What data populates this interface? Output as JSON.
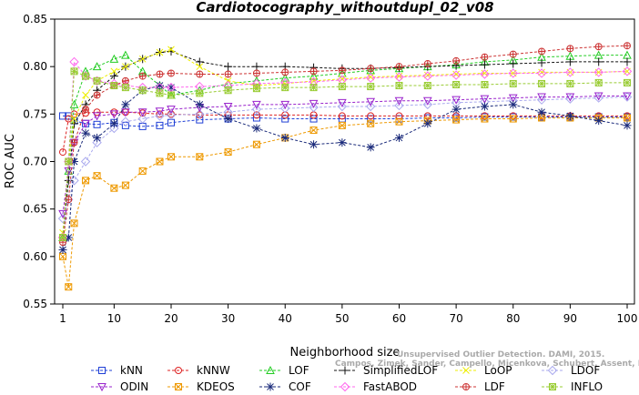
{
  "chart_data": {
    "type": "line",
    "title": "Cardiotocography_withoutdupl_02_v08",
    "xlabel": "Neighborhood size",
    "ylabel": "ROC AUC",
    "xlim": [
      1,
      100
    ],
    "ylim": [
      0.55,
      0.85
    ],
    "x_ticks": [
      1,
      10,
      20,
      30,
      40,
      50,
      60,
      70,
      80,
      90,
      100
    ],
    "y_ticks": [
      "0.55",
      "0.60",
      "0.65",
      "0.70",
      "0.75",
      "0.80",
      "0.85"
    ],
    "grid": false,
    "legend_position": "bottom",
    "watermark": [
      "Unsupervised Outlier Detection. DAMI, 2015.",
      "Campos, Zimek, Sander, Campello, Micenkova, Schubert, Assent, Houle"
    ],
    "x": [
      1,
      2,
      3,
      5,
      7,
      10,
      12,
      15,
      18,
      20,
      25,
      30,
      35,
      40,
      45,
      50,
      55,
      60,
      65,
      70,
      75,
      80,
      85,
      90,
      95,
      100
    ],
    "series": [
      {
        "name": "kNN",
        "color": "#1f3fd6",
        "marker": "square",
        "values": [
          0.748,
          0.748,
          0.743,
          0.74,
          0.739,
          0.741,
          0.738,
          0.737,
          0.738,
          0.741,
          0.744,
          0.745,
          0.746,
          0.745,
          0.745,
          0.745,
          0.745,
          0.745,
          0.746,
          0.746,
          0.747,
          0.747,
          0.747,
          0.747,
          0.747,
          0.747
        ]
      },
      {
        "name": "kNNW",
        "color": "#dd2222",
        "marker": "circle",
        "values": [
          0.71,
          0.745,
          0.75,
          0.751,
          0.752,
          0.752,
          0.752,
          0.751,
          0.75,
          0.75,
          0.749,
          0.749,
          0.749,
          0.749,
          0.749,
          0.748,
          0.748,
          0.748,
          0.748,
          0.748,
          0.748,
          0.748,
          0.748,
          0.748,
          0.748,
          0.748
        ]
      },
      {
        "name": "LOF",
        "color": "#22cc22",
        "marker": "triangle",
        "values": [
          0.62,
          0.69,
          0.76,
          0.795,
          0.8,
          0.808,
          0.812,
          0.795,
          0.78,
          0.77,
          0.775,
          0.782,
          0.785,
          0.788,
          0.79,
          0.793,
          0.796,
          0.798,
          0.8,
          0.802,
          0.805,
          0.807,
          0.81,
          0.811,
          0.812,
          0.812
        ]
      },
      {
        "name": "SimplifiedLOF",
        "color": "#111111",
        "marker": "plus",
        "values": [
          0.62,
          0.68,
          0.74,
          0.76,
          0.775,
          0.79,
          0.8,
          0.808,
          0.815,
          0.816,
          0.805,
          0.8,
          0.8,
          0.8,
          0.799,
          0.798,
          0.798,
          0.799,
          0.8,
          0.801,
          0.802,
          0.803,
          0.804,
          0.805,
          0.805,
          0.805
        ]
      },
      {
        "name": "LoOP",
        "color": "#eeee00",
        "marker": "x",
        "values": [
          0.625,
          0.7,
          0.745,
          0.77,
          0.785,
          0.795,
          0.8,
          0.808,
          0.815,
          0.818,
          0.8,
          0.785,
          0.78,
          0.782,
          0.785,
          0.787,
          0.789,
          0.79,
          0.791,
          0.792,
          0.793,
          0.793,
          0.794,
          0.794,
          0.794,
          0.795
        ]
      },
      {
        "name": "LDOF",
        "color": "#aaaaee",
        "marker": "diamond",
        "values": [
          0.64,
          0.66,
          0.68,
          0.7,
          0.72,
          0.735,
          0.742,
          0.745,
          0.748,
          0.749,
          0.75,
          0.752,
          0.755,
          0.756,
          0.757,
          0.758,
          0.758,
          0.759,
          0.76,
          0.762,
          0.763,
          0.764,
          0.765,
          0.766,
          0.767,
          0.768
        ]
      },
      {
        "name": "ODIN",
        "color": "#9922cc",
        "marker": "triangle-down",
        "values": [
          0.645,
          0.69,
          0.72,
          0.74,
          0.748,
          0.75,
          0.752,
          0.752,
          0.753,
          0.755,
          0.757,
          0.758,
          0.76,
          0.76,
          0.761,
          0.762,
          0.763,
          0.764,
          0.764,
          0.765,
          0.766,
          0.767,
          0.768,
          0.768,
          0.769,
          0.769
        ]
      },
      {
        "name": "KDEOS",
        "color": "#ee9900",
        "marker": "square-x",
        "values": [
          0.6,
          0.568,
          0.635,
          0.68,
          0.685,
          0.672,
          0.675,
          0.69,
          0.7,
          0.705,
          0.705,
          0.71,
          0.718,
          0.725,
          0.733,
          0.738,
          0.74,
          0.742,
          0.743,
          0.744,
          0.745,
          0.745,
          0.746,
          0.746,
          0.746,
          0.746
        ]
      },
      {
        "name": "COF",
        "color": "#1a2a7a",
        "marker": "star",
        "values": [
          0.607,
          0.62,
          0.7,
          0.73,
          0.725,
          0.74,
          0.76,
          0.775,
          0.78,
          0.778,
          0.76,
          0.745,
          0.735,
          0.725,
          0.718,
          0.72,
          0.715,
          0.725,
          0.74,
          0.755,
          0.758,
          0.76,
          0.752,
          0.748,
          0.743,
          0.738
        ]
      },
      {
        "name": "FastABOD",
        "color": "#ff66ee",
        "marker": "diamond",
        "values": [
          0.62,
          0.7,
          0.805,
          0.79,
          0.785,
          0.782,
          0.78,
          0.778,
          0.778,
          0.778,
          0.779,
          0.78,
          0.782,
          0.783,
          0.784,
          0.786,
          0.788,
          0.789,
          0.79,
          0.791,
          0.792,
          0.793,
          0.793,
          0.794,
          0.794,
          0.795
        ]
      },
      {
        "name": "LDF",
        "color": "#cc3333",
        "marker": "circle-plus",
        "values": [
          0.615,
          0.66,
          0.72,
          0.755,
          0.77,
          0.78,
          0.785,
          0.79,
          0.792,
          0.793,
          0.792,
          0.792,
          0.793,
          0.794,
          0.795,
          0.796,
          0.798,
          0.8,
          0.803,
          0.806,
          0.81,
          0.813,
          0.816,
          0.819,
          0.821,
          0.822
        ]
      },
      {
        "name": "INFLO",
        "color": "#99cc33",
        "marker": "square-star",
        "values": [
          0.62,
          0.7,
          0.795,
          0.79,
          0.785,
          0.78,
          0.778,
          0.775,
          0.772,
          0.77,
          0.772,
          0.775,
          0.777,
          0.778,
          0.778,
          0.779,
          0.779,
          0.78,
          0.78,
          0.781,
          0.781,
          0.782,
          0.782,
          0.782,
          0.783,
          0.783
        ]
      }
    ]
  }
}
